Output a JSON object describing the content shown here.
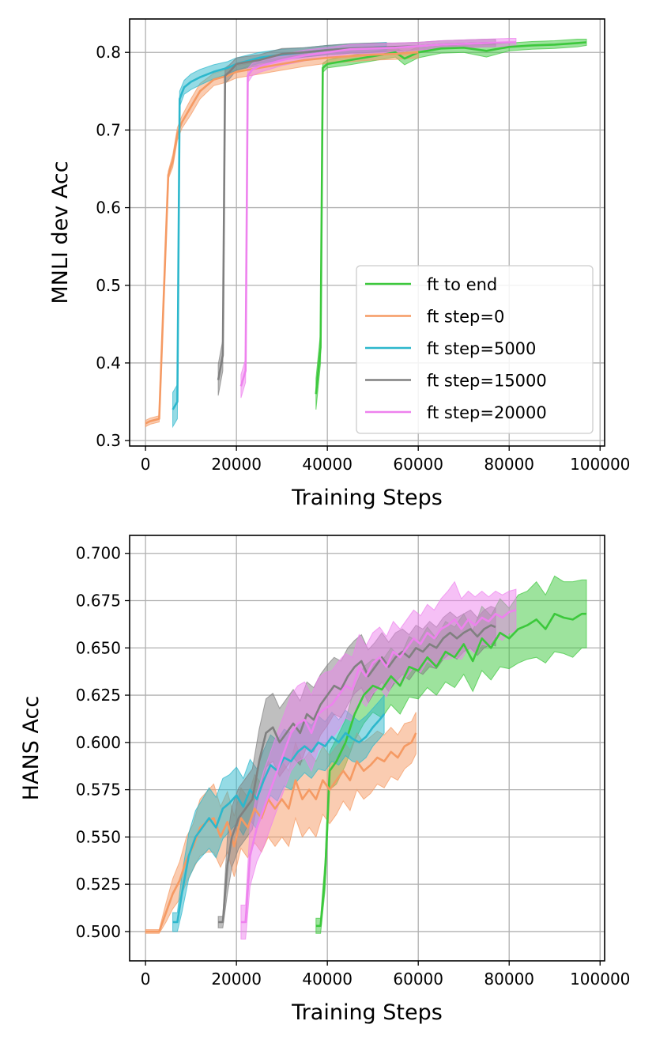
{
  "colors": {
    "ft_to_end": "#3cc83c",
    "ft_step_0": "#f59a63",
    "ft_step_5000": "#2cb7cc",
    "ft_step_15000": "#808080",
    "ft_step_20000": "#ee82ee"
  },
  "chart_data": [
    {
      "type": "line",
      "title": "",
      "xlabel": "Training Steps",
      "ylabel": "MNLI dev Acc",
      "xlim": [
        -3500,
        101000
      ],
      "ylim": [
        0.293,
        0.843
      ],
      "xticks": [
        0,
        20000,
        40000,
        60000,
        80000,
        100000
      ],
      "xtick_labels": [
        "0",
        "20000",
        "40000",
        "60000",
        "80000",
        "100000"
      ],
      "yticks": [
        0.3,
        0.4,
        0.5,
        0.6,
        0.7,
        0.8
      ],
      "ytick_labels": [
        "0.3",
        "0.4",
        "0.5",
        "0.6",
        "0.7",
        "0.8"
      ],
      "grid": true,
      "legend_position": "lower-right",
      "series": [
        {
          "key": "ft_to_end",
          "name": "ft to end",
          "x": [
            37500,
            38500,
            39000,
            40000,
            45000,
            50000,
            55000,
            57000,
            60000,
            65000,
            70000,
            75000,
            80000,
            85000,
            90000,
            95000,
            97000
          ],
          "y": [
            0.36,
            0.42,
            0.78,
            0.785,
            0.79,
            0.795,
            0.8,
            0.792,
            0.8,
            0.805,
            0.806,
            0.802,
            0.807,
            0.809,
            0.81,
            0.812,
            0.813
          ],
          "spread": [
            0.02,
            0.02,
            0.006,
            0.005,
            0.006,
            0.006,
            0.006,
            0.008,
            0.007,
            0.006,
            0.006,
            0.008,
            0.005,
            0.005,
            0.005,
            0.005,
            0.004
          ]
        },
        {
          "key": "ft_step_0",
          "name": "ft step=0",
          "x": [
            0,
            1000,
            3000,
            5000,
            6000,
            7000,
            8000,
            10000,
            12000,
            15000,
            18000,
            20000,
            25000,
            30000,
            35000,
            40000,
            45000,
            50000,
            55000,
            60000
          ],
          "y": [
            0.322,
            0.325,
            0.328,
            0.642,
            0.66,
            0.695,
            0.71,
            0.73,
            0.75,
            0.765,
            0.77,
            0.775,
            0.78,
            0.785,
            0.79,
            0.793,
            0.795,
            0.797,
            0.798,
            0.8
          ],
          "spread": [
            0.004,
            0.004,
            0.004,
            0.005,
            0.008,
            0.008,
            0.008,
            0.01,
            0.01,
            0.008,
            0.008,
            0.008,
            0.008,
            0.008,
            0.008,
            0.007,
            0.007,
            0.007,
            0.007,
            0.007
          ]
        },
        {
          "key": "ft_step_5000",
          "name": "ft step=5000",
          "x": [
            6000,
            7000,
            7500,
            8500,
            10000,
            12000,
            15000,
            18000,
            20000,
            25000,
            30000,
            35000,
            40000,
            45000,
            50000,
            53000
          ],
          "y": [
            0.34,
            0.35,
            0.74,
            0.755,
            0.762,
            0.768,
            0.775,
            0.78,
            0.785,
            0.793,
            0.797,
            0.8,
            0.803,
            0.805,
            0.806,
            0.807
          ],
          "spread": [
            0.022,
            0.022,
            0.01,
            0.009,
            0.01,
            0.01,
            0.009,
            0.008,
            0.008,
            0.007,
            0.007,
            0.006,
            0.006,
            0.006,
            0.006,
            0.006
          ]
        },
        {
          "key": "ft_step_15000",
          "name": "ft step=15000",
          "x": [
            16000,
            17000,
            17500,
            18500,
            20000,
            25000,
            30000,
            35000,
            40000,
            45000,
            50000,
            55000,
            60000,
            65000,
            70000,
            75000,
            77000
          ],
          "y": [
            0.378,
            0.41,
            0.77,
            0.775,
            0.785,
            0.79,
            0.798,
            0.8,
            0.803,
            0.805,
            0.806,
            0.807,
            0.808,
            0.81,
            0.811,
            0.812,
            0.812
          ],
          "spread": [
            0.02,
            0.02,
            0.01,
            0.009,
            0.008,
            0.007,
            0.007,
            0.006,
            0.006,
            0.006,
            0.006,
            0.005,
            0.005,
            0.005,
            0.005,
            0.005,
            0.005
          ]
        },
        {
          "key": "ft_step_20000",
          "name": "ft step=20000",
          "x": [
            21000,
            22000,
            22500,
            23500,
            25000,
            30000,
            35000,
            40000,
            45000,
            50000,
            55000,
            60000,
            65000,
            70000,
            75000,
            80000,
            81500
          ],
          "y": [
            0.37,
            0.39,
            0.77,
            0.778,
            0.782,
            0.79,
            0.796,
            0.8,
            0.804,
            0.805,
            0.806,
            0.808,
            0.81,
            0.811,
            0.812,
            0.813,
            0.813
          ],
          "spread": [
            0.015,
            0.015,
            0.009,
            0.008,
            0.008,
            0.007,
            0.007,
            0.006,
            0.006,
            0.006,
            0.006,
            0.005,
            0.005,
            0.005,
            0.005,
            0.005,
            0.005
          ]
        }
      ]
    },
    {
      "type": "line",
      "title": "",
      "xlabel": "Training Steps",
      "ylabel": "HANS Acc",
      "xlim": [
        -3500,
        101000
      ],
      "ylim": [
        0.4845,
        0.7095
      ],
      "xticks": [
        0,
        20000,
        40000,
        60000,
        80000,
        100000
      ],
      "xtick_labels": [
        "0",
        "20000",
        "40000",
        "60000",
        "80000",
        "100000"
      ],
      "yticks": [
        0.5,
        0.525,
        0.55,
        0.575,
        0.6,
        0.625,
        0.65,
        0.675,
        0.7
      ],
      "ytick_labels": [
        "0.500",
        "0.525",
        "0.550",
        "0.575",
        "0.600",
        "0.625",
        "0.650",
        "0.675",
        "0.700"
      ],
      "grid": true,
      "legend_position": "none",
      "series": [
        {
          "key": "ft_to_end",
          "name": "ft to end",
          "x": [
            37500,
            38500,
            39500,
            40500,
            42000,
            44000,
            46000,
            48000,
            50000,
            52000,
            54000,
            56000,
            58000,
            60000,
            62000,
            64000,
            66000,
            68000,
            70000,
            72000,
            74000,
            76000,
            78000,
            80000,
            82000,
            84000,
            86000,
            88000,
            90000,
            92000,
            94000,
            96000,
            97000
          ],
          "y": [
            0.503,
            0.503,
            0.53,
            0.585,
            0.59,
            0.6,
            0.615,
            0.625,
            0.63,
            0.628,
            0.635,
            0.63,
            0.64,
            0.638,
            0.645,
            0.64,
            0.648,
            0.645,
            0.652,
            0.643,
            0.655,
            0.65,
            0.658,
            0.655,
            0.66,
            0.662,
            0.665,
            0.66,
            0.668,
            0.666,
            0.665,
            0.668,
            0.668
          ],
          "spread": [
            0.004,
            0.004,
            0.008,
            0.01,
            0.012,
            0.012,
            0.014,
            0.015,
            0.014,
            0.015,
            0.015,
            0.015,
            0.016,
            0.015,
            0.016,
            0.015,
            0.016,
            0.016,
            0.016,
            0.016,
            0.017,
            0.017,
            0.018,
            0.016,
            0.018,
            0.018,
            0.02,
            0.018,
            0.02,
            0.019,
            0.02,
            0.018,
            0.018
          ]
        },
        {
          "key": "ft_step_0",
          "name": "ft step=0",
          "x": [
            0,
            1500,
            3000,
            4500,
            6000,
            7500,
            9000,
            10500,
            12000,
            13500,
            15000,
            16500,
            18000,
            19500,
            21000,
            22500,
            24000,
            25500,
            27000,
            28500,
            30000,
            31500,
            33000,
            34500,
            36000,
            37500,
            39000,
            40500,
            42000,
            43500,
            45000,
            46500,
            48000,
            49500,
            51000,
            52500,
            54000,
            55500,
            57000,
            58500,
            59500
          ],
          "y": [
            0.5,
            0.5,
            0.5,
            0.51,
            0.52,
            0.527,
            0.538,
            0.545,
            0.555,
            0.558,
            0.56,
            0.55,
            0.558,
            0.545,
            0.56,
            0.555,
            0.565,
            0.56,
            0.57,
            0.565,
            0.57,
            0.565,
            0.58,
            0.57,
            0.575,
            0.57,
            0.58,
            0.575,
            0.58,
            0.585,
            0.58,
            0.59,
            0.585,
            0.588,
            0.592,
            0.59,
            0.595,
            0.592,
            0.598,
            0.6,
            0.605
          ],
          "spread": [
            0.001,
            0.001,
            0.001,
            0.005,
            0.008,
            0.01,
            0.012,
            0.012,
            0.015,
            0.016,
            0.018,
            0.016,
            0.016,
            0.016,
            0.016,
            0.016,
            0.018,
            0.018,
            0.02,
            0.02,
            0.02,
            0.02,
            0.02,
            0.02,
            0.02,
            0.02,
            0.018,
            0.018,
            0.018,
            0.016,
            0.016,
            0.015,
            0.015,
            0.015,
            0.014,
            0.014,
            0.013,
            0.012,
            0.012,
            0.011,
            0.011
          ]
        },
        {
          "key": "ft_step_5000",
          "name": "ft step=5000",
          "x": [
            6000,
            7000,
            8000,
            9500,
            11000,
            12500,
            14000,
            15500,
            17000,
            18500,
            20000,
            21500,
            23000,
            24500,
            26000,
            27500,
            29000,
            30500,
            32000,
            33500,
            35000,
            36500,
            38000,
            39500,
            41000,
            42500,
            44000,
            45500,
            47000,
            48500,
            50000,
            51500,
            52500
          ],
          "y": [
            0.505,
            0.505,
            0.52,
            0.54,
            0.55,
            0.555,
            0.56,
            0.555,
            0.565,
            0.568,
            0.572,
            0.566,
            0.575,
            0.57,
            0.58,
            0.588,
            0.585,
            0.592,
            0.59,
            0.595,
            0.598,
            0.595,
            0.6,
            0.598,
            0.603,
            0.6,
            0.605,
            0.602,
            0.6,
            0.603,
            0.608,
            0.612,
            0.615
          ],
          "spread": [
            0.005,
            0.005,
            0.01,
            0.012,
            0.014,
            0.015,
            0.016,
            0.016,
            0.016,
            0.015,
            0.015,
            0.015,
            0.016,
            0.016,
            0.016,
            0.016,
            0.016,
            0.015,
            0.015,
            0.015,
            0.014,
            0.014,
            0.014,
            0.013,
            0.013,
            0.012,
            0.012,
            0.012,
            0.011,
            0.011,
            0.01,
            0.01,
            0.01
          ]
        },
        {
          "key": "ft_step_15000",
          "name": "ft step=15000",
          "x": [
            16000,
            17000,
            18000,
            19000,
            20500,
            22000,
            23500,
            25000,
            26500,
            28000,
            29500,
            31000,
            32500,
            34000,
            35500,
            37000,
            38500,
            40000,
            41500,
            43000,
            44500,
            46000,
            47500,
            49000,
            50500,
            52000,
            53500,
            55000,
            56500,
            58000,
            59500,
            61000,
            62500,
            64000,
            65500,
            67000,
            68500,
            70000,
            71500,
            73000,
            74500,
            76000,
            77000
          ],
          "y": [
            0.505,
            0.505,
            0.535,
            0.55,
            0.56,
            0.565,
            0.57,
            0.59,
            0.605,
            0.608,
            0.6,
            0.605,
            0.61,
            0.605,
            0.615,
            0.612,
            0.62,
            0.625,
            0.63,
            0.628,
            0.635,
            0.64,
            0.643,
            0.635,
            0.64,
            0.645,
            0.64,
            0.645,
            0.648,
            0.645,
            0.65,
            0.648,
            0.652,
            0.65,
            0.655,
            0.658,
            0.655,
            0.658,
            0.66,
            0.656,
            0.66,
            0.662,
            0.661
          ],
          "spread": [
            0.003,
            0.003,
            0.015,
            0.016,
            0.016,
            0.016,
            0.016,
            0.017,
            0.018,
            0.018,
            0.018,
            0.018,
            0.018,
            0.017,
            0.017,
            0.017,
            0.016,
            0.016,
            0.015,
            0.015,
            0.015,
            0.014,
            0.014,
            0.014,
            0.013,
            0.013,
            0.013,
            0.013,
            0.012,
            0.012,
            0.012,
            0.012,
            0.012,
            0.011,
            0.011,
            0.011,
            0.011,
            0.01,
            0.01,
            0.01,
            0.01,
            0.01,
            0.01
          ]
        },
        {
          "key": "ft_step_20000",
          "name": "ft step=20000",
          "x": [
            21000,
            22000,
            23000,
            24500,
            26000,
            27500,
            29000,
            30500,
            32000,
            33500,
            35000,
            36500,
            38000,
            39500,
            41000,
            42500,
            44000,
            45500,
            47000,
            48500,
            50000,
            51500,
            53000,
            54500,
            56000,
            57500,
            59000,
            60500,
            62000,
            63500,
            65000,
            66500,
            68000,
            69500,
            71000,
            72500,
            74000,
            75500,
            77000,
            78500,
            80000,
            81500
          ],
          "y": [
            0.505,
            0.505,
            0.54,
            0.555,
            0.565,
            0.575,
            0.585,
            0.595,
            0.605,
            0.61,
            0.612,
            0.605,
            0.615,
            0.618,
            0.62,
            0.625,
            0.63,
            0.628,
            0.64,
            0.635,
            0.642,
            0.645,
            0.64,
            0.648,
            0.645,
            0.65,
            0.655,
            0.652,
            0.658,
            0.655,
            0.66,
            0.662,
            0.665,
            0.66,
            0.665,
            0.662,
            0.666,
            0.664,
            0.668,
            0.666,
            0.669,
            0.67
          ],
          "spread": [
            0.009,
            0.009,
            0.016,
            0.018,
            0.02,
            0.02,
            0.02,
            0.02,
            0.02,
            0.02,
            0.02,
            0.02,
            0.019,
            0.019,
            0.018,
            0.018,
            0.017,
            0.017,
            0.017,
            0.016,
            0.016,
            0.016,
            0.016,
            0.016,
            0.015,
            0.015,
            0.015,
            0.015,
            0.015,
            0.015,
            0.016,
            0.018,
            0.02,
            0.016,
            0.015,
            0.015,
            0.014,
            0.013,
            0.012,
            0.012,
            0.011,
            0.011
          ]
        }
      ]
    }
  ]
}
